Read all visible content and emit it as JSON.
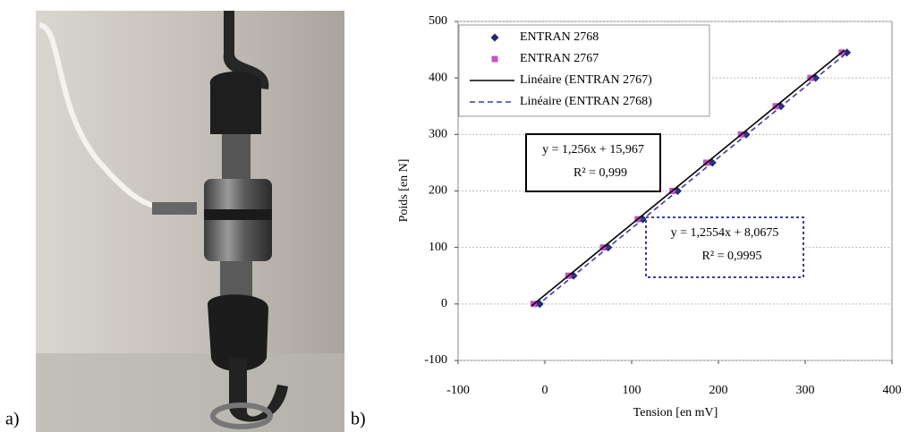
{
  "panel_labels": [
    "a)",
    "b)"
  ],
  "chart_data": {
    "type": "scatter",
    "xlabel": "Tension [en mV]",
    "ylabel": "Poids [en N]",
    "xlim": [
      -100,
      400
    ],
    "xticks": [
      -100,
      0,
      100,
      200,
      300,
      400
    ],
    "ylim": [
      -100,
      500
    ],
    "yticks": [
      -100,
      0,
      100,
      200,
      300,
      400,
      500
    ],
    "grid": true,
    "legend": "top-left",
    "series": [
      {
        "name": "ENTRAN 2768",
        "color": "#1f2a6b",
        "marker": "diamond",
        "x": [
          -6,
          33,
          73,
          113,
          153,
          193,
          232,
          272,
          312,
          348
        ],
        "values": [
          0,
          50,
          100,
          150,
          200,
          250,
          300,
          350,
          400,
          445
        ]
      },
      {
        "name": "ENTRAN 2767",
        "color": "#c653c6",
        "marker": "square",
        "x": [
          -13,
          27,
          67,
          107,
          147,
          186,
          226,
          266,
          306,
          342
        ],
        "values": [
          0,
          50,
          100,
          150,
          200,
          250,
          300,
          350,
          400,
          445
        ]
      },
      {
        "name": "Linéaire (ENTRAN 2767)",
        "color": "#000000",
        "line_style": "solid",
        "x": [
          -15,
          345
        ],
        "values": [
          -3,
          449
        ]
      },
      {
        "name": "Linéaire (ENTRAN 2768)",
        "color": "#3b3ba6",
        "line_style": "dashed",
        "x": [
          -10,
          350
        ],
        "values": [
          -4,
          447
        ]
      }
    ],
    "annotations": [
      {
        "lines": [
          "y = 1,256x + 15,967",
          "R² = 0,999"
        ],
        "border": "solid",
        "color": "#000000"
      },
      {
        "lines": [
          "y = 1,2554x + 8,0675",
          "R² = 0,9995"
        ],
        "border": "dotted",
        "color": "#3b3ba6"
      }
    ]
  }
}
